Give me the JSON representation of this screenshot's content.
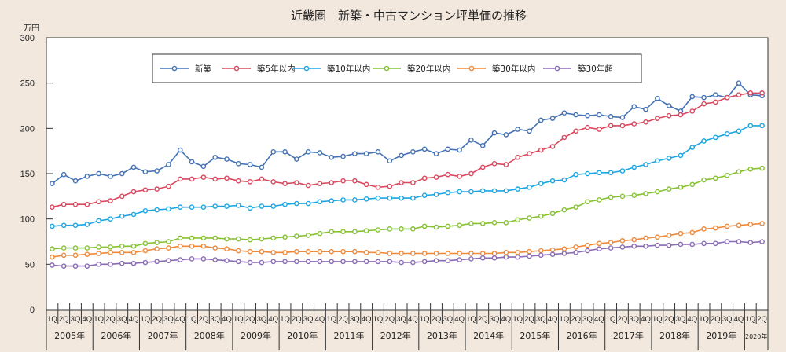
{
  "chart_data": {
    "type": "line",
    "title": "近畿圏　新築・中古マンション坪単価の推移",
    "ylabel": "万円",
    "xlabel": "",
    "ylim": [
      0,
      300
    ],
    "yticks": [
      0,
      50,
      100,
      150,
      200,
      250,
      300
    ],
    "grid": false,
    "legend_position": "top-center",
    "quarter_labels": [
      "1Q",
      "2Q",
      "3Q",
      "4Q"
    ],
    "years": [
      "2005年",
      "2006年",
      "2007年",
      "2008年",
      "2009年",
      "2010年",
      "2011年",
      "2012年",
      "2013年",
      "2014年",
      "2015年",
      "2016年",
      "2017年",
      "2018年",
      "2019年",
      "2020年"
    ],
    "x_start": "2005 1Q",
    "x_end": "2020 2Q",
    "series": [
      {
        "name": "新築",
        "color": "#4472b4",
        "values": [
          139,
          149,
          142,
          147,
          150,
          147,
          150,
          157,
          152,
          153,
          160,
          176,
          163,
          158,
          168,
          166,
          161,
          160,
          157,
          174,
          174,
          166,
          174,
          173,
          168,
          169,
          172,
          172,
          174,
          164,
          170,
          174,
          177,
          172,
          177,
          176,
          187,
          181,
          195,
          193,
          199,
          197,
          209,
          211,
          217,
          215,
          214,
          215,
          213,
          212,
          224,
          221,
          233,
          225,
          219,
          235,
          234,
          237,
          234,
          250,
          237,
          236
        ]
      },
      {
        "name": "築5年以内",
        "color": "#d9485f",
        "values": [
          113,
          116,
          116,
          116,
          119,
          120,
          125,
          130,
          132,
          133,
          136,
          144,
          144,
          146,
          144,
          145,
          142,
          141,
          144,
          141,
          139,
          140,
          137,
          139,
          140,
          142,
          142,
          138,
          135,
          136,
          140,
          140,
          145,
          146,
          149,
          147,
          150,
          157,
          161,
          160,
          168,
          172,
          176,
          180,
          190,
          197,
          201,
          199,
          203,
          203,
          205,
          207,
          211,
          214,
          215,
          219,
          227,
          229,
          234,
          237,
          239,
          239
        ]
      },
      {
        "name": "築10年以内",
        "color": "#1ba6e2",
        "values": [
          92,
          93,
          93,
          94,
          98,
          100,
          103,
          105,
          109,
          110,
          111,
          113,
          113,
          113,
          114,
          114,
          115,
          112,
          114,
          114,
          116,
          117,
          117,
          119,
          120,
          121,
          121,
          122,
          123,
          123,
          123,
          123,
          126,
          127,
          129,
          130,
          130,
          131,
          131,
          131,
          133,
          135,
          139,
          142,
          143,
          149,
          150,
          151,
          151,
          153,
          157,
          160,
          164,
          167,
          170,
          179,
          186,
          190,
          194,
          197,
          203,
          203
        ]
      },
      {
        "name": "築20年以内",
        "color": "#86c232",
        "values": [
          67,
          68,
          68,
          68,
          69,
          69,
          70,
          70,
          73,
          74,
          75,
          79,
          79,
          79,
          79,
          78,
          78,
          77,
          78,
          79,
          80,
          81,
          82,
          84,
          86,
          86,
          86,
          87,
          88,
          89,
          89,
          89,
          92,
          91,
          92,
          93,
          95,
          95,
          96,
          96,
          99,
          101,
          103,
          106,
          110,
          113,
          119,
          121,
          124,
          125,
          126,
          128,
          130,
          133,
          135,
          138,
          143,
          145,
          148,
          152,
          155,
          156
        ]
      },
      {
        "name": "築30年以内",
        "color": "#ee8a3c",
        "values": [
          58,
          60,
          60,
          61,
          62,
          63,
          63,
          63,
          65,
          67,
          68,
          70,
          70,
          70,
          68,
          67,
          65,
          64,
          64,
          63,
          63,
          64,
          64,
          64,
          64,
          64,
          64,
          63,
          63,
          62,
          62,
          62,
          62,
          62,
          62,
          62,
          62,
          62,
          62,
          63,
          63,
          64,
          65,
          66,
          67,
          69,
          71,
          73,
          74,
          76,
          77,
          79,
          80,
          82,
          84,
          85,
          89,
          90,
          92,
          93,
          94,
          95
        ]
      },
      {
        "name": "築30年超",
        "color": "#8a6bb5",
        "values": [
          49,
          48,
          48,
          48,
          50,
          50,
          51,
          51,
          52,
          53,
          54,
          55,
          56,
          56,
          55,
          54,
          53,
          52,
          52,
          53,
          53,
          53,
          53,
          53,
          53,
          53,
          53,
          53,
          53,
          53,
          52,
          52,
          53,
          54,
          54,
          55,
          56,
          57,
          57,
          58,
          58,
          59,
          60,
          61,
          62,
          63,
          65,
          67,
          68,
          69,
          70,
          70,
          71,
          71,
          72,
          72,
          73,
          73,
          75,
          75,
          74,
          75
        ]
      }
    ]
  }
}
